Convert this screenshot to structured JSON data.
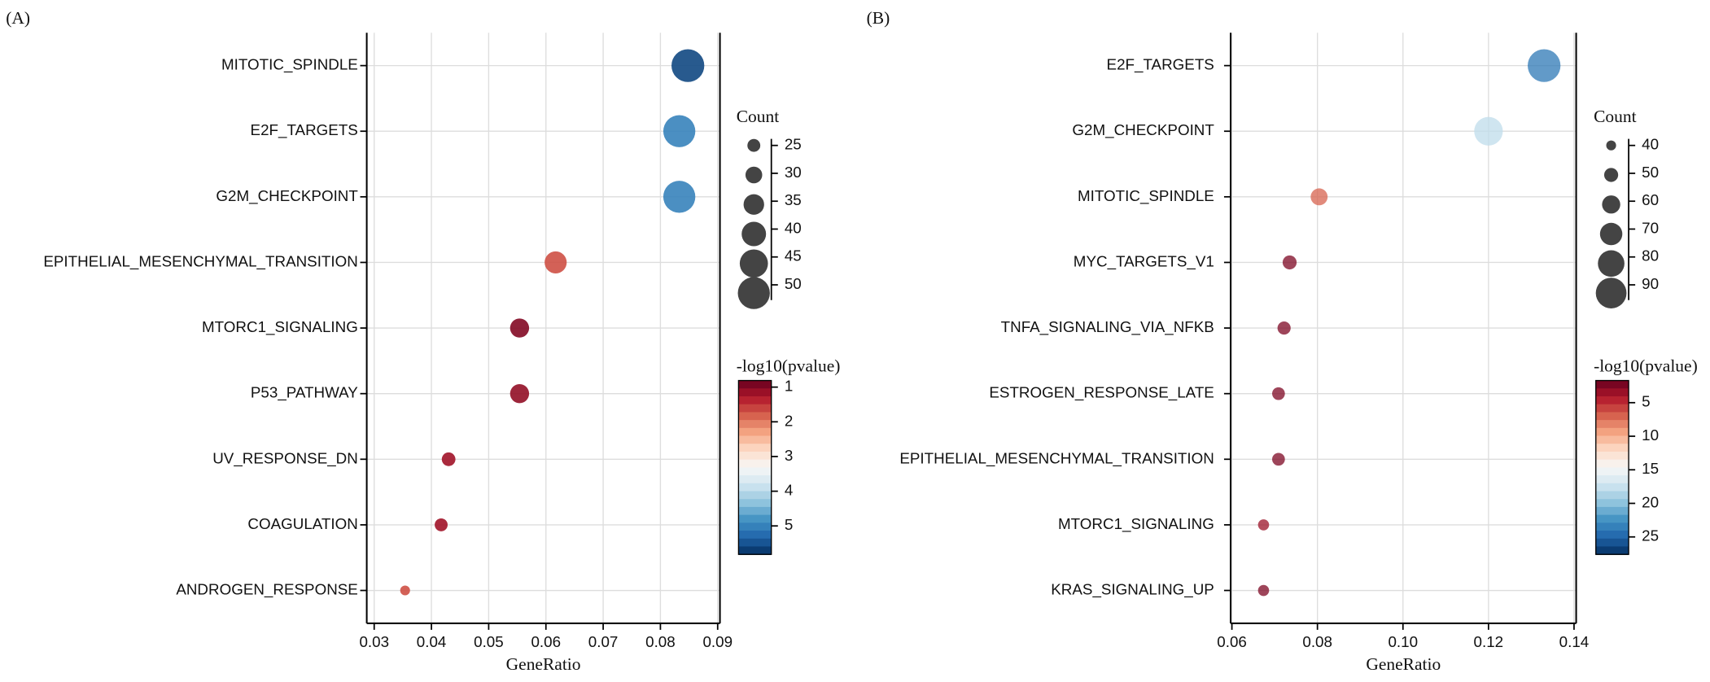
{
  "chart_data": [
    {
      "type": "dot",
      "panel_label": "(A)",
      "xlabel": "GeneRatio",
      "size_title": "Count",
      "color_title": "-log10(pvalue)",
      "categories": [
        "MITOTIC_SPINDLE",
        "E2F_TARGETS",
        "G2M_CHECKPOINT",
        "EPITHELIAL_MESENCHYMAL_TRANSITION",
        "MTORC1_SIGNALING",
        "P53_PATHWAY",
        "UV_RESPONSE_DN",
        "COAGULATION",
        "ANDROGEN_RESPONSE"
      ],
      "values": [
        0.0848,
        0.0833,
        0.0833,
        0.0617,
        0.0554,
        0.0554,
        0.043,
        0.0417,
        0.0354
      ],
      "sizes": [
        51,
        50,
        50,
        37,
        33,
        33,
        26,
        25,
        21
      ],
      "color_values": [
        5.6,
        5.0,
        5.0,
        1.7,
        1.0,
        1.1,
        1.2,
        1.2,
        1.7
      ],
      "xlim": [
        0.0287,
        0.0904
      ],
      "xticks": [
        0.03,
        0.04,
        0.05,
        0.06,
        0.07,
        0.08,
        0.09
      ],
      "grid": true,
      "size_ticks": [
        25,
        30,
        35,
        40,
        45,
        50
      ],
      "clim": [
        0.81,
        5.82
      ],
      "color_ticks": [
        1,
        2,
        3,
        4,
        5
      ],
      "colormap": [
        "#67001f",
        "#b2182b",
        "#d6604d",
        "#f4a582",
        "#fddbc7",
        "#f7f7f7",
        "#d1e5f0",
        "#92c5de",
        "#4393c3",
        "#2166ac",
        "#053061"
      ],
      "opacity": 0.9
    },
    {
      "type": "dot",
      "panel_label": "(B)",
      "xlabel": "GeneRatio",
      "size_title": "Count",
      "color_title": "-log10(pvalue)",
      "categories": [
        "E2F_TARGETS",
        "G2M_CHECKPOINT",
        "MITOTIC_SPINDLE",
        "MYC_TARGETS_V1",
        "TNFA_SIGNALING_VIA_NFKB",
        "ESTROGEN_RESPONSE_LATE",
        "EPITHELIAL_MESENCHYMAL_TRANSITION",
        "MTORC1_SIGNALING",
        "KRAS_SIGNALING_UP"
      ],
      "values": [
        0.133,
        0.12,
        0.0804,
        0.0735,
        0.0722,
        0.0709,
        0.0709,
        0.0674,
        0.0674
      ],
      "sizes": [
        95,
        85,
        57,
        50,
        48,
        47,
        47,
        43,
        43
      ],
      "color_values": [
        24,
        18,
        7,
        2.5,
        2.5,
        2.5,
        2.5,
        3.5,
        2.5
      ],
      "xlim": [
        0.0597,
        0.1405
      ],
      "xticks": [
        0.06,
        0.08,
        {
          "value": 0.1,
          "label": "0.10"
        },
        0.12,
        0.14
      ],
      "grid": true,
      "size_ticks": [
        40,
        50,
        60,
        70,
        80,
        90
      ],
      "clim": [
        1.7,
        27.6
      ],
      "color_ticks": [
        5,
        10,
        15,
        20,
        25
      ],
      "colormap": [
        "#67001f",
        "#b2182b",
        "#d6604d",
        "#f4a582",
        "#fddbc7",
        "#f7f7f7",
        "#d1e5f0",
        "#92c5de",
        "#4393c3",
        "#2166ac",
        "#053061"
      ],
      "opacity": 0.75
    }
  ]
}
